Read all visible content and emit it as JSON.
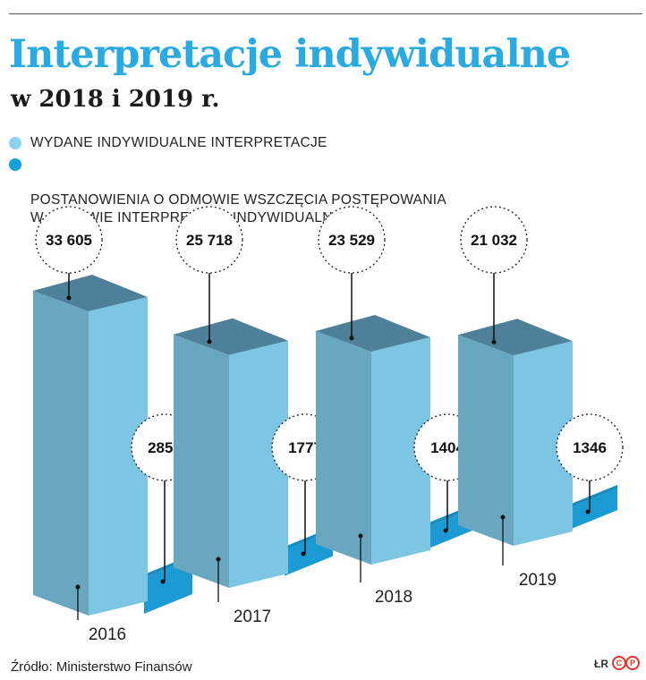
{
  "title": "Interpretacje indywidualne",
  "subtitle": "w 2018 i 2019 r.",
  "legend": [
    {
      "label": "WYDANE INDYWIDUALNE INTERPRETACJE",
      "color": "#8fd0ee"
    },
    {
      "label": "POSTANOWIENIA O ODMOWIE WSZCZĘCIA POSTĘPOWANIA\nW SPRAWIE INTERPRETACJI INDYWIDUALNEJ",
      "color": "#1a9ed9"
    }
  ],
  "source": "Źródło: Ministerstwo Finansów",
  "credit": {
    "text": "ŁR",
    "mark1": "C",
    "mark2": "P"
  },
  "colors": {
    "title": "#2aaae2",
    "bar_front": "#7cc5e3",
    "bar_side": "#5a8ea5",
    "bar_top": "#4e8099",
    "small_bar": "#1c9ad4"
  },
  "chart_data": {
    "type": "bar",
    "categories": [
      "2016",
      "2017",
      "2018",
      "2019"
    ],
    "series": [
      {
        "name": "WYDANE INDYWIDUALNE INTERPRETACJE",
        "values": [
          33605,
          25718,
          23529,
          21032
        ],
        "labels": [
          "33 605",
          "25 718",
          "23 529",
          "21 032"
        ]
      },
      {
        "name": "POSTANOWIENIA O ODMOWIE WSZCZĘCIA POSTĘPOWANIA W SPRAWIE INTERPRETACJI INDYWIDUALNEJ",
        "values": [
          2858,
          1777,
          1404,
          1346
        ],
        "labels": [
          "2858",
          "1777",
          "1404",
          "1346"
        ]
      }
    ]
  }
}
